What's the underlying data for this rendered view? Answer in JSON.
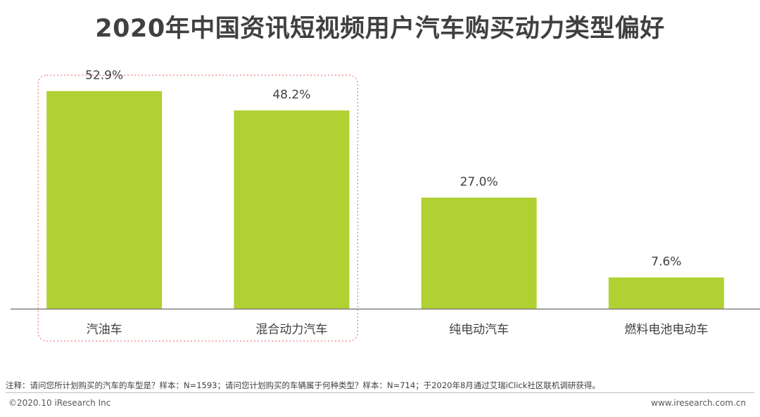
{
  "title": "2020年中国资讯短视频用户汽车购买动力类型偏好",
  "chart_data": {
    "type": "bar",
    "categories": [
      "汽油车",
      "混合动力汽车",
      "纯电动汽车",
      "燃料电池电动车"
    ],
    "values": [
      52.9,
      48.2,
      27.0,
      7.6
    ],
    "value_labels": [
      "52.9%",
      "48.2%",
      "27.0%",
      "7.6%"
    ],
    "unit": "%",
    "ylim": [
      0,
      60
    ],
    "grid": false,
    "highlighted_categories": [
      "汽油车",
      "混合动力汽车"
    ],
    "colors": {
      "bar": "#b0d132",
      "highlight_border": "#ee7b7b"
    }
  },
  "footnote": "注释：请问您所计划购买的汽车的车型是？样本：N=1593；请问您计划购买的车辆属于何种类型？样本：N=714；于2020年8月通过艾瑞iClick社区联机调研获得。",
  "copyright": "©2020.10 iResearch Inc",
  "website": "www.iresearch.com.cn"
}
